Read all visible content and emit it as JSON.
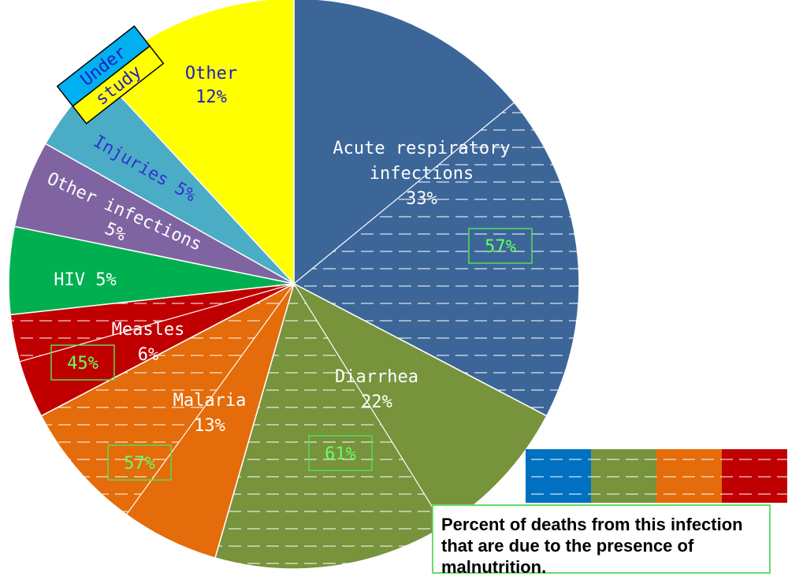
{
  "chart_data": {
    "type": "pie",
    "slices": [
      {
        "name": "Acute respiratory infections",
        "label_lines": [
          "Acute respiratory",
          "infections"
        ],
        "value": 33,
        "value_label": "33%",
        "color": "#3c6698",
        "malnutrition": 57,
        "malnutrition_label": "57%",
        "label_color": "#ffffff"
      },
      {
        "name": "Diarrhea",
        "label_lines": [
          "Diarrhea"
        ],
        "value": 22,
        "value_label": "22%",
        "color": "#77933c",
        "malnutrition": 61,
        "malnutrition_label": "61%",
        "label_color": "#ffffff"
      },
      {
        "name": "Malaria",
        "label_lines": [
          "Malaria"
        ],
        "value": 13,
        "value_label": "13%",
        "color": "#e46c0a",
        "malnutrition": 57,
        "malnutrition_label": "57%",
        "label_color": "#ffffff"
      },
      {
        "name": "Measles",
        "label_lines": [
          "Measles"
        ],
        "value": 6,
        "value_label": "6%",
        "color": "#c00000",
        "malnutrition": 45,
        "malnutrition_label": "45%",
        "label_color": "#ffffff"
      },
      {
        "name": "HIV",
        "label_lines": [
          "HIV 5%"
        ],
        "value": 5,
        "value_label": "",
        "color": "#00b050",
        "malnutrition": null,
        "label_color": "#ffffff"
      },
      {
        "name": "Other infections",
        "label_lines": [
          "Other infections"
        ],
        "value": 5,
        "value_label": "5%",
        "color": "#8064a2",
        "malnutrition": null,
        "label_color": "#ffffff"
      },
      {
        "name": "Injuries",
        "label_lines": [
          "Injuries 5%"
        ],
        "value": 5,
        "value_label": "",
        "color": "#4bacc6",
        "malnutrition": null,
        "label_color": "#3333cc"
      },
      {
        "name": "Other",
        "label_lines": [
          "Other"
        ],
        "value": 12,
        "value_label": "12%",
        "color": "#ffff00",
        "malnutrition": null,
        "label_color": "#1f1fbf"
      }
    ],
    "under_study_lines": [
      "Under",
      "study"
    ],
    "legend_text": "Percent of deaths from this infection that are due to the presence of malnutrition.",
    "legend_swatches": [
      "#0070c0",
      "#77933c",
      "#e46c0a",
      "#c00000"
    ],
    "malnutrition_label_color": "#66ff66",
    "pattern_line_color": "#ffffff"
  }
}
